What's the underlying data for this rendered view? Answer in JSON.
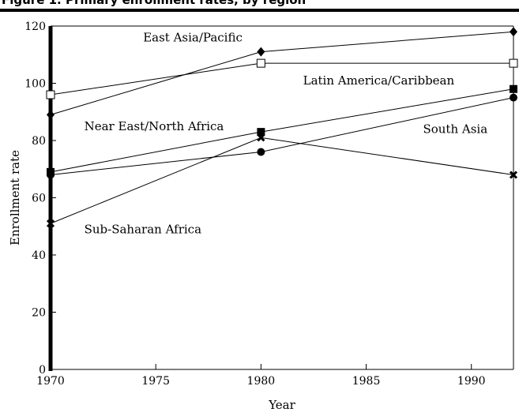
{
  "header": {
    "text": "Figure 1. Primary enrollment rates, by region"
  },
  "chart_data": {
    "type": "line",
    "title": "",
    "xlabel": "Year",
    "ylabel": "Enrollment rate",
    "xlim": [
      1970,
      1992
    ],
    "ylim": [
      0,
      120
    ],
    "x_ticks": [
      1970,
      1975,
      1980,
      1985,
      1990
    ],
    "y_ticks": [
      0,
      20,
      40,
      60,
      80,
      100,
      120
    ],
    "grid": false,
    "legend": "none (inline labels)",
    "series": [
      {
        "name": "East Asia/Pacific",
        "marker": "diamond-filled",
        "x": [
          1970,
          1980,
          1992
        ],
        "y": [
          89,
          111,
          118
        ]
      },
      {
        "name": "Latin America/Caribbean",
        "marker": "square-open",
        "x": [
          1970,
          1980,
          1992
        ],
        "y": [
          96,
          107,
          107
        ]
      },
      {
        "name": "Near East/North Africa",
        "marker": "square-filled",
        "x": [
          1970,
          1980,
          1992
        ],
        "y": [
          69,
          83,
          98
        ]
      },
      {
        "name": "South Asia",
        "marker": "circle-filled",
        "x": [
          1970,
          1980,
          1992
        ],
        "y": [
          68,
          76,
          95
        ]
      },
      {
        "name": "Sub-Saharan Africa",
        "marker": "x-bold",
        "x": [
          1970,
          1980,
          1992
        ],
        "y": [
          51,
          81,
          68
        ]
      }
    ],
    "labels": [
      {
        "text": "East Asia/Pacific",
        "x": 1974.4,
        "y": 116
      },
      {
        "text": "Latin America/Caribbean",
        "x": 1982,
        "y": 101
      },
      {
        "text": "Near East/North Africa",
        "x": 1971.6,
        "y": 85
      },
      {
        "text": "South Asia",
        "x": 1987.7,
        "y": 84
      },
      {
        "text": "Sub-Saharan Africa",
        "x": 1971.6,
        "y": 49
      }
    ]
  }
}
